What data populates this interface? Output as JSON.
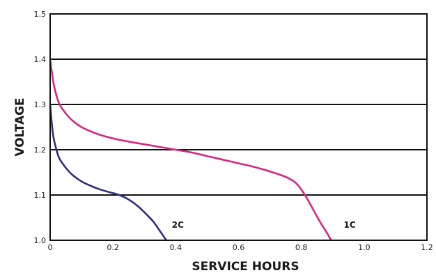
{
  "chart_data": {
    "type": "line",
    "xlabel": "SERVICE HOURS",
    "ylabel": "VOLTAGE",
    "xlim": [
      0,
      1.2
    ],
    "ylim": [
      1.0,
      1.5
    ],
    "x_ticks": [
      "0",
      "0.2",
      "0.4",
      "0.6",
      "0.8",
      "1.0",
      "1.2"
    ],
    "y_ticks": [
      "1.0",
      "1.1",
      "1.2",
      "1.3",
      "1.4",
      "1.5"
    ],
    "horizontal_grid": true,
    "vertical_grid": false,
    "series": [
      {
        "name": "1C",
        "color": "#d6267e",
        "points": [
          [
            0.0,
            1.4
          ],
          [
            0.01,
            1.35
          ],
          [
            0.02,
            1.32
          ],
          [
            0.03,
            1.3
          ],
          [
            0.05,
            1.28
          ],
          [
            0.07,
            1.265
          ],
          [
            0.1,
            1.25
          ],
          [
            0.15,
            1.235
          ],
          [
            0.2,
            1.225
          ],
          [
            0.25,
            1.218
          ],
          [
            0.3,
            1.212
          ],
          [
            0.35,
            1.206
          ],
          [
            0.4,
            1.2
          ],
          [
            0.45,
            1.194
          ],
          [
            0.5,
            1.186
          ],
          [
            0.55,
            1.178
          ],
          [
            0.6,
            1.17
          ],
          [
            0.65,
            1.162
          ],
          [
            0.7,
            1.152
          ],
          [
            0.75,
            1.14
          ],
          [
            0.78,
            1.128
          ],
          [
            0.8,
            1.112
          ],
          [
            0.82,
            1.09
          ],
          [
            0.84,
            1.065
          ],
          [
            0.86,
            1.04
          ],
          [
            0.88,
            1.018
          ],
          [
            0.895,
            1.0
          ]
        ]
      },
      {
        "name": "2C",
        "color": "#2e2f7b",
        "points": [
          [
            0.0,
            1.3
          ],
          [
            0.005,
            1.26
          ],
          [
            0.01,
            1.23
          ],
          [
            0.02,
            1.2
          ],
          [
            0.03,
            1.18
          ],
          [
            0.05,
            1.16
          ],
          [
            0.07,
            1.145
          ],
          [
            0.1,
            1.13
          ],
          [
            0.13,
            1.12
          ],
          [
            0.16,
            1.112
          ],
          [
            0.19,
            1.106
          ],
          [
            0.22,
            1.1
          ],
          [
            0.25,
            1.09
          ],
          [
            0.28,
            1.075
          ],
          [
            0.31,
            1.055
          ],
          [
            0.33,
            1.04
          ],
          [
            0.35,
            1.02
          ],
          [
            0.37,
            1.0
          ]
        ]
      }
    ],
    "annotations": [
      {
        "text": "2C",
        "series": "2C"
      },
      {
        "text": "1C",
        "series": "1C"
      }
    ]
  }
}
